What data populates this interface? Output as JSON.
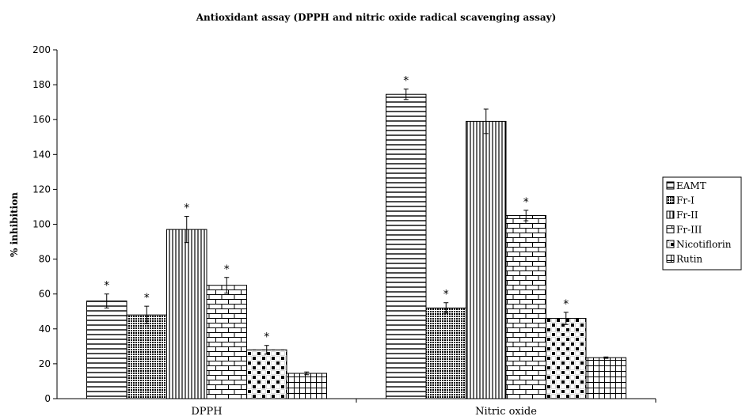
{
  "chart_data": {
    "type": "bar",
    "title": "Antioxidant assay (DPPH and nitric oxide radical scavenging assay)",
    "xlabel": "",
    "ylabel": "% inhibition",
    "ylim": [
      0,
      200
    ],
    "yticks": [
      0,
      20,
      40,
      60,
      80,
      100,
      120,
      140,
      160,
      180,
      200
    ],
    "categories": [
      "DPPH",
      "Nitric oxide"
    ],
    "legend_position": "right",
    "significance_marker": "*",
    "series": [
      {
        "name": "EAMT",
        "pattern": "horizontal-lines",
        "values": [
          56,
          174.5
        ],
        "errors": [
          4,
          3
        ],
        "significant": [
          true,
          true
        ]
      },
      {
        "name": "Fr-I",
        "pattern": "dense-dots",
        "values": [
          48,
          52
        ],
        "errors": [
          5,
          3
        ],
        "significant": [
          true,
          true
        ]
      },
      {
        "name": "Fr-II",
        "pattern": "vertical-lines",
        "values": [
          97,
          159
        ],
        "errors": [
          7.5,
          7
        ],
        "significant": [
          true,
          false
        ]
      },
      {
        "name": "Fr-III",
        "pattern": "bricks",
        "values": [
          65,
          105
        ],
        "errors": [
          4.5,
          3
        ],
        "significant": [
          true,
          true
        ]
      },
      {
        "name": "Nicotiflorin",
        "pattern": "checker",
        "values": [
          28,
          46
        ],
        "errors": [
          2.5,
          3.5
        ],
        "significant": [
          true,
          true
        ]
      },
      {
        "name": "Rutin",
        "pattern": "grid",
        "values": [
          14.5,
          23.5
        ],
        "errors": [
          0.8,
          0.4
        ],
        "significant": [
          false,
          false
        ]
      }
    ]
  }
}
